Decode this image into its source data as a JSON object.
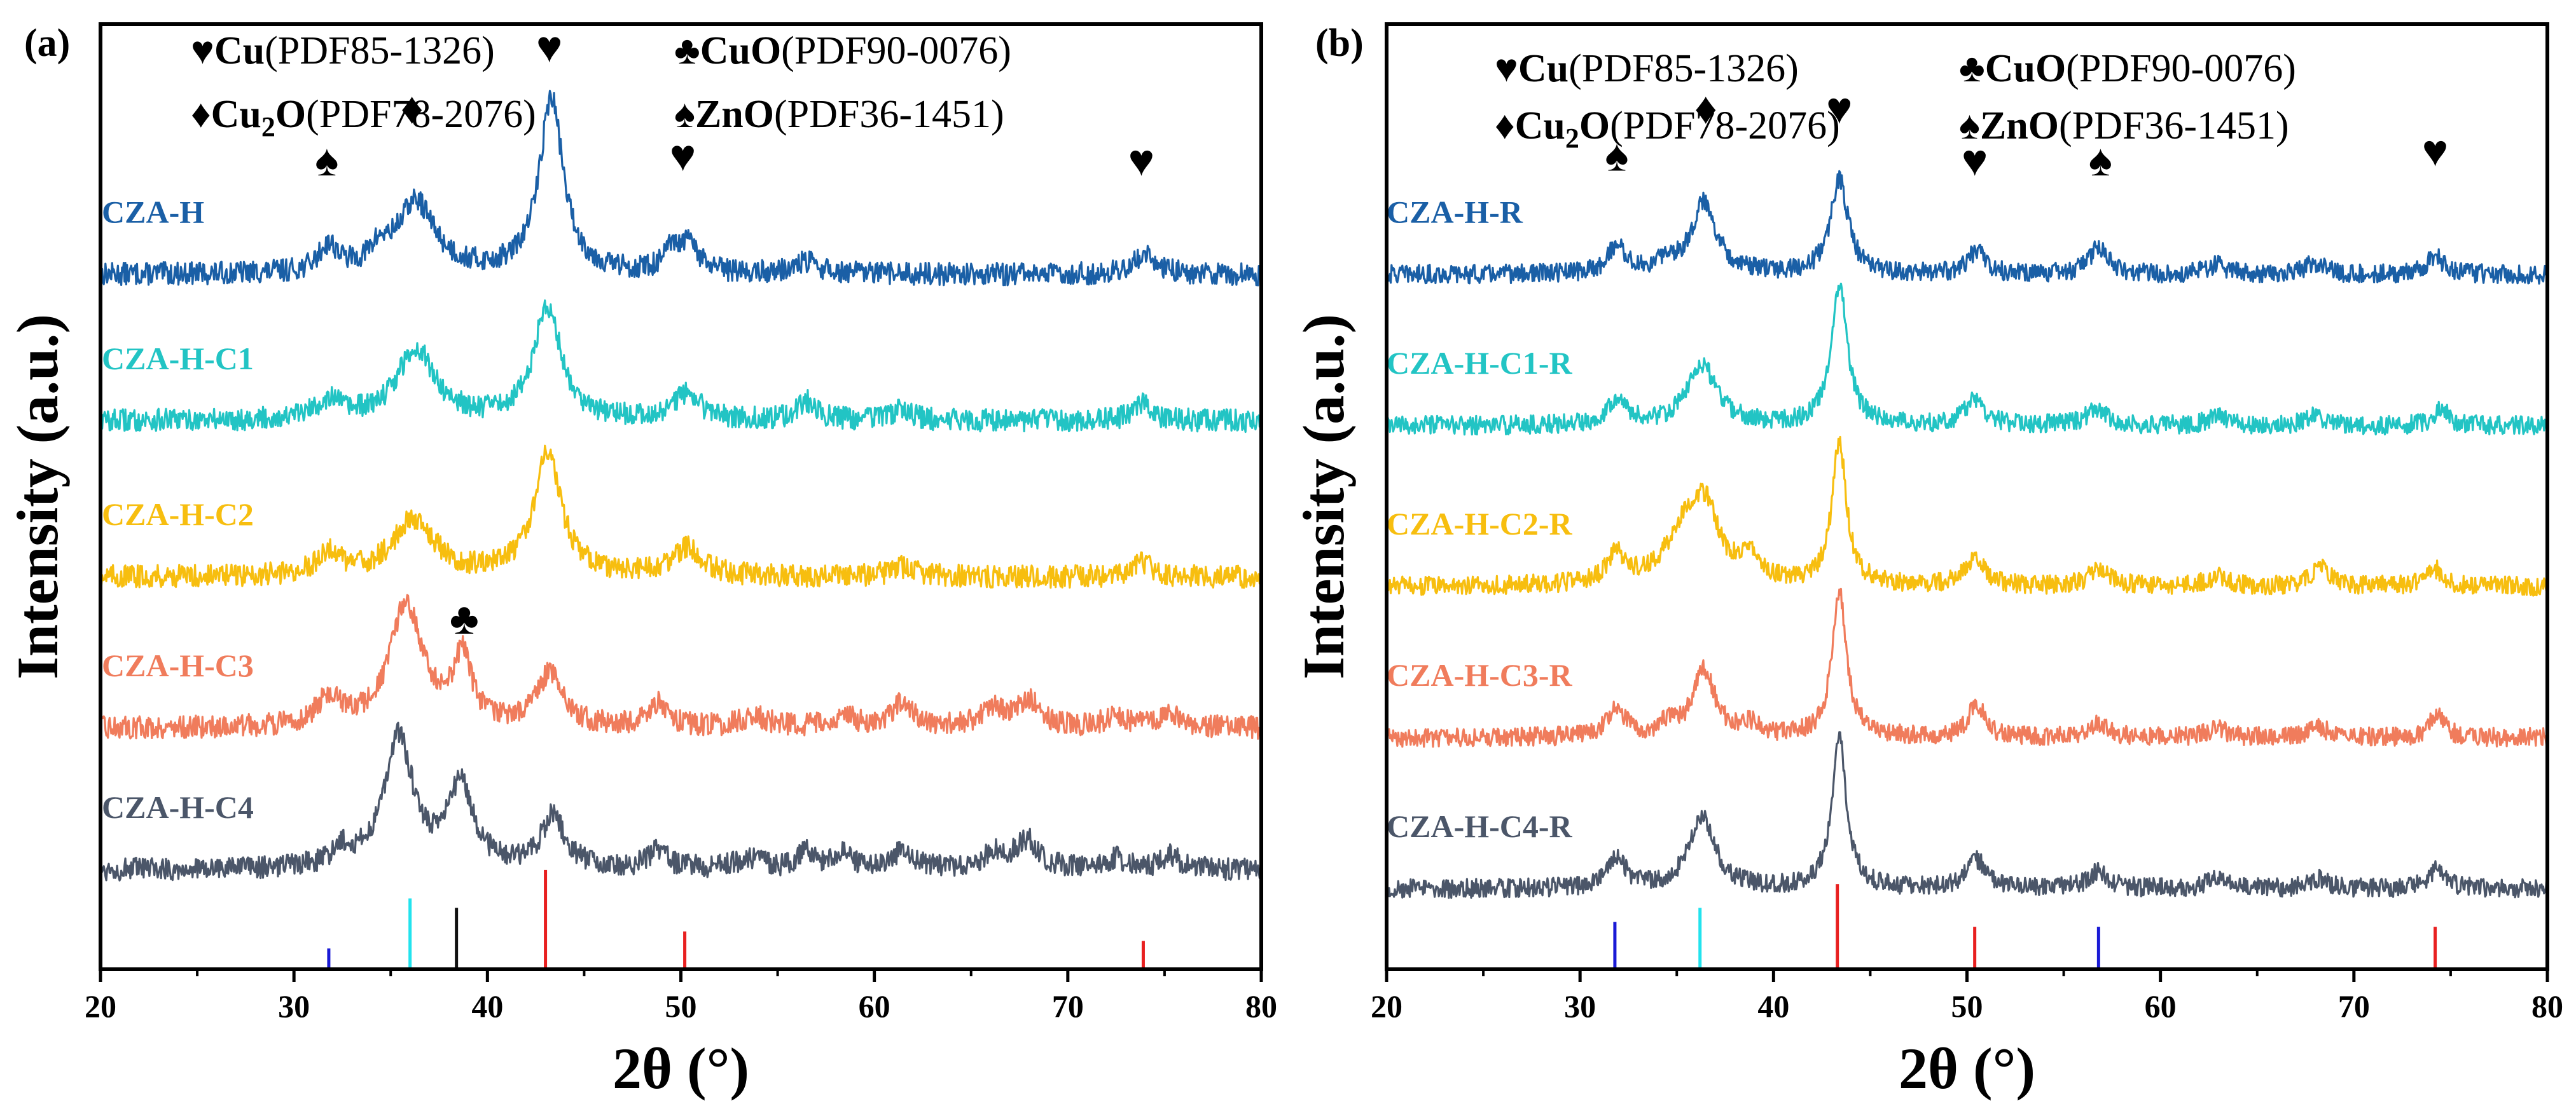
{
  "chart_data": [
    {
      "panel_label": "(a)",
      "type": "line",
      "title": "",
      "xlabel": "2θ (°)",
      "ylabel": "Intensity (a.u.)",
      "xlim": [
        20,
        80
      ],
      "xticks": [
        20,
        30,
        40,
        50,
        60,
        70,
        80
      ],
      "ylim": [
        0,
        1
      ],
      "legend": [
        {
          "symbol": "♥",
          "phase": "Cu",
          "phase_sub": "",
          "phase_after": "",
          "pdf": "(PDF85-1326)"
        },
        {
          "symbol": "♣",
          "phase": "CuO",
          "phase_sub": "",
          "phase_after": "",
          "pdf": "(PDF90-0076)"
        },
        {
          "symbol": "♦",
          "phase": "Cu",
          "phase_sub": "2",
          "phase_after": "O",
          "pdf": "(PDF78-2076)"
        },
        {
          "symbol": "♠",
          "phase": "ZnO",
          "phase_sub": "",
          "phase_after": "",
          "pdf": "(PDF36-1451)"
        }
      ],
      "series": [
        {
          "name": "CZA-H",
          "color": "#1a5fa6",
          "baseline": 0.735,
          "noise": 0.012,
          "peaks": [
            [
              31.8,
              0.028,
              0.6
            ],
            [
              34.4,
              0.018,
              0.6
            ],
            [
              36.3,
              0.075,
              1.2
            ],
            [
              43.3,
              0.185,
              0.75
            ],
            [
              49.5,
              0.02,
              0.45
            ],
            [
              50.4,
              0.03,
              0.6
            ],
            [
              56.5,
              0.012,
              0.8
            ],
            [
              74.0,
              0.022,
              0.7
            ]
          ]
        },
        {
          "name": "CZA-H-C1",
          "color": "#22c4c4",
          "baseline": 0.58,
          "noise": 0.012,
          "peaks": [
            [
              31.8,
              0.02,
              0.8
            ],
            [
              36.3,
              0.075,
              1.2
            ],
            [
              43.1,
              0.12,
              0.85
            ],
            [
              50.3,
              0.028,
              0.8
            ],
            [
              56.5,
              0.02,
              0.6
            ],
            [
              61.4,
              0.012,
              0.6
            ],
            [
              73.8,
              0.018,
              0.6
            ]
          ]
        },
        {
          "name": "CZA-H-C2",
          "color": "#f7be0f",
          "baseline": 0.415,
          "noise": 0.012,
          "peaks": [
            [
              31.8,
              0.025,
              0.7
            ],
            [
              36.2,
              0.06,
              1.3
            ],
            [
              43.1,
              0.13,
              0.85
            ],
            [
              50.3,
              0.03,
              0.9
            ],
            [
              61.5,
              0.01,
              0.8
            ],
            [
              73.9,
              0.015,
              0.6
            ]
          ]
        },
        {
          "name": "CZA-H-C3",
          "color": "#f07c5c",
          "baseline": 0.255,
          "noise": 0.012,
          "peaks": [
            [
              31.8,
              0.03,
              0.7
            ],
            [
              35.8,
              0.13,
              1.0
            ],
            [
              38.7,
              0.07,
              0.6
            ],
            [
              43.2,
              0.055,
              0.8
            ],
            [
              48.8,
              0.025,
              0.6
            ],
            [
              53.8,
              0.012,
              0.8
            ],
            [
              58.4,
              0.012,
              0.7
            ],
            [
              61.4,
              0.025,
              0.7
            ],
            [
              66.1,
              0.02,
              0.7
            ],
            [
              68.0,
              0.028,
              0.7
            ],
            [
              72.5,
              0.012,
              0.7
            ],
            [
              75.2,
              0.015,
              0.7
            ]
          ]
        },
        {
          "name": "CZA-H-C4",
          "color": "#4b5669",
          "baseline": 0.105,
          "noise": 0.012,
          "peaks": [
            [
              32.5,
              0.018,
              0.6
            ],
            [
              35.4,
              0.14,
              0.9
            ],
            [
              38.6,
              0.085,
              0.8
            ],
            [
              43.4,
              0.055,
              0.75
            ],
            [
              48.8,
              0.018,
              0.6
            ],
            [
              53.5,
              0.012,
              0.7
            ],
            [
              56.4,
              0.018,
              0.5
            ],
            [
              58.3,
              0.015,
              0.7
            ],
            [
              61.5,
              0.018,
              0.7
            ],
            [
              66.2,
              0.018,
              0.7
            ],
            [
              67.9,
              0.03,
              0.7
            ],
            [
              72.5,
              0.012,
              0.6
            ],
            [
              75.3,
              0.015,
              0.6
            ]
          ]
        }
      ],
      "reference_lines": [
        {
          "x": 31.8,
          "height": 0.022,
          "color": "#1a1ad6"
        },
        {
          "x": 36.0,
          "height": 0.075,
          "color": "#22e3ee"
        },
        {
          "x": 38.4,
          "height": 0.065,
          "color": "#111111"
        },
        {
          "x": 43.0,
          "height": 0.105,
          "color": "#e82020"
        },
        {
          "x": 50.2,
          "height": 0.04,
          "color": "#e82020"
        },
        {
          "x": 73.9,
          "height": 0.03,
          "color": "#e82020"
        }
      ],
      "peak_markers": [
        {
          "x": 31.7,
          "y": 0.84,
          "symbol": "♠"
        },
        {
          "x": 36.1,
          "y": 0.895,
          "symbol": "♦"
        },
        {
          "x": 43.2,
          "y": 0.96,
          "symbol": "♥"
        },
        {
          "x": 50.1,
          "y": 0.845,
          "symbol": "♥"
        },
        {
          "x": 73.8,
          "y": 0.84,
          "symbol": "♥"
        },
        {
          "x": 38.8,
          "y": 0.355,
          "symbol": "♣"
        }
      ]
    },
    {
      "panel_label": "(b)",
      "type": "line",
      "title": "",
      "xlabel": "2θ (°)",
      "ylabel": "Intensity (a.u.)",
      "xlim": [
        20,
        80
      ],
      "xticks": [
        20,
        30,
        40,
        50,
        60,
        70,
        80
      ],
      "ylim": [
        0,
        1
      ],
      "legend": [
        {
          "symbol": "♥",
          "phase": "Cu",
          "phase_sub": "",
          "phase_after": "",
          "pdf": "(PDF85-1326)"
        },
        {
          "symbol": "♣",
          "phase": "CuO",
          "phase_sub": "",
          "phase_after": "",
          "pdf": "(PDF90-0076)"
        },
        {
          "symbol": "♦",
          "phase": "Cu",
          "phase_sub": "2",
          "phase_after": "O",
          "pdf": "(PDF78-2076)"
        },
        {
          "symbol": "♠",
          "phase": "ZnO",
          "phase_sub": "",
          "phase_after": "",
          "pdf": "(PDF36-1451)"
        }
      ],
      "series": [
        {
          "name": "CZA-H-R",
          "color": "#1a5fa6",
          "baseline": 0.735,
          "noise": 0.01,
          "peaks": [
            [
              31.9,
              0.03,
              0.55
            ],
            [
              34.5,
              0.012,
              0.5
            ],
            [
              36.4,
              0.075,
              0.8
            ],
            [
              43.4,
              0.1,
              0.55
            ],
            [
              50.5,
              0.025,
              0.5
            ],
            [
              56.8,
              0.03,
              0.55
            ],
            [
              62.9,
              0.01,
              0.6
            ],
            [
              68.0,
              0.012,
              0.6
            ],
            [
              74.2,
              0.02,
              0.5
            ]
          ]
        },
        {
          "name": "CZA-H-C1-R",
          "color": "#22c4c4",
          "baseline": 0.575,
          "noise": 0.01,
          "peaks": [
            [
              31.9,
              0.028,
              0.6
            ],
            [
              36.3,
              0.065,
              0.9
            ],
            [
              43.4,
              0.15,
              0.5
            ],
            [
              50.4,
              0.028,
              0.6
            ],
            [
              56.7,
              0.018,
              0.6
            ],
            [
              62.9,
              0.01,
              0.6
            ],
            [
              68.0,
              0.01,
              0.6
            ],
            [
              74.5,
              0.02,
              0.4
            ]
          ]
        },
        {
          "name": "CZA-H-C2-R",
          "color": "#f7be0f",
          "baseline": 0.405,
          "noise": 0.01,
          "peaks": [
            [
              31.9,
              0.03,
              0.6
            ],
            [
              35.5,
              0.06,
              1.2
            ],
            [
              36.5,
              0.06,
              0.8
            ],
            [
              38.8,
              0.03,
              0.6
            ],
            [
              43.4,
              0.15,
              0.45
            ],
            [
              50.4,
              0.028,
              0.6
            ],
            [
              56.8,
              0.018,
              0.6
            ],
            [
              62.9,
              0.01,
              0.6
            ],
            [
              68.3,
              0.02,
              0.6
            ],
            [
              74.2,
              0.018,
              0.5
            ]
          ]
        },
        {
          "name": "CZA-H-C3-R",
          "color": "#f07c5c",
          "baseline": 0.245,
          "noise": 0.01,
          "peaks": [
            [
              31.9,
              0.028,
              0.6
            ],
            [
              34.5,
              0.012,
              0.5
            ],
            [
              36.4,
              0.07,
              0.7
            ],
            [
              38.8,
              0.012,
              0.6
            ],
            [
              43.4,
              0.155,
              0.45
            ],
            [
              50.5,
              0.035,
              0.5
            ],
            [
              56.8,
              0.015,
              0.6
            ],
            [
              62.9,
              0.01,
              0.6
            ],
            [
              68.2,
              0.01,
              0.6
            ],
            [
              74.3,
              0.025,
              0.45
            ]
          ]
        },
        {
          "name": "CZA-H-C4-R",
          "color": "#4b5669",
          "baseline": 0.085,
          "noise": 0.01,
          "peaks": [
            [
              31.9,
              0.03,
              0.6
            ],
            [
              36.3,
              0.075,
              0.8
            ],
            [
              43.4,
              0.16,
              0.45
            ],
            [
              50.5,
              0.03,
              0.6
            ],
            [
              56.8,
              0.018,
              0.6
            ],
            [
              62.9,
              0.01,
              0.6
            ],
            [
              68.2,
              0.01,
              0.6
            ],
            [
              74.3,
              0.022,
              0.5
            ]
          ]
        }
      ],
      "reference_lines": [
        {
          "x": 31.8,
          "height": 0.05,
          "color": "#1a1ad6"
        },
        {
          "x": 36.2,
          "height": 0.065,
          "color": "#22e3ee"
        },
        {
          "x": 43.3,
          "height": 0.09,
          "color": "#e82020"
        },
        {
          "x": 50.4,
          "height": 0.045,
          "color": "#e82020"
        },
        {
          "x": 56.8,
          "height": 0.045,
          "color": "#1a1ad6"
        },
        {
          "x": 74.2,
          "height": 0.045,
          "color": "#e82020"
        }
      ],
      "peak_markers": [
        {
          "x": 31.9,
          "y": 0.845,
          "symbol": "♠"
        },
        {
          "x": 36.5,
          "y": 0.895,
          "symbol": "♦"
        },
        {
          "x": 43.4,
          "y": 0.895,
          "symbol": "♥"
        },
        {
          "x": 50.4,
          "y": 0.84,
          "symbol": "♥"
        },
        {
          "x": 56.9,
          "y": 0.84,
          "symbol": "♠"
        },
        {
          "x": 74.2,
          "y": 0.85,
          "symbol": "♥"
        }
      ]
    }
  ]
}
